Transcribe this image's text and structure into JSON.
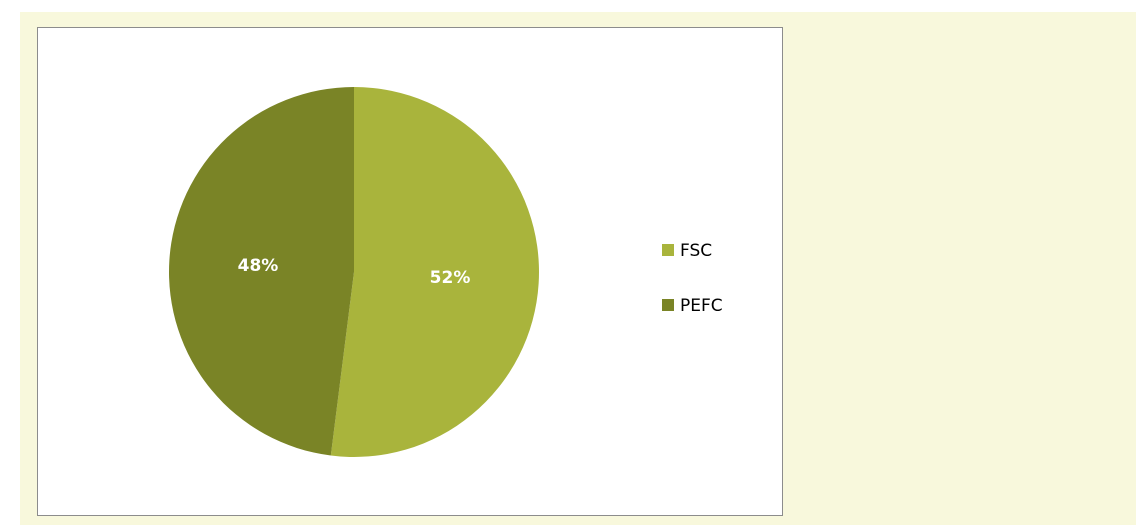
{
  "chart_data": {
    "type": "pie",
    "categories": [
      "FSC",
      "PEFC"
    ],
    "values": [
      52,
      48
    ],
    "value_labels": [
      "52%",
      "48%"
    ],
    "colors": [
      "#a9b43c",
      "#7a8426"
    ],
    "legend": "right"
  }
}
